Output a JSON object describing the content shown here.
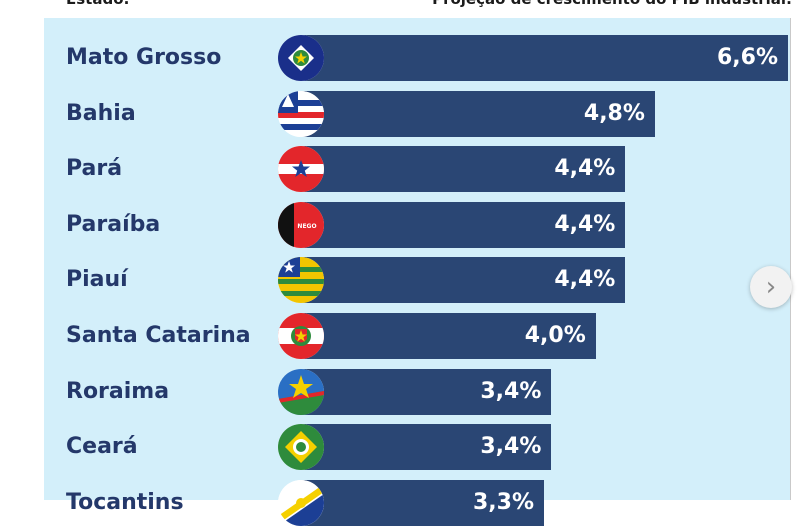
{
  "header": {
    "left": "Estado:",
    "right": "Projeção de crescimento do PIB industrial:"
  },
  "colors": {
    "panel": "#d3effa",
    "bar": "#2a4674",
    "label": "#24386a",
    "value_text": "#ffffff"
  },
  "next_button": {
    "icon": "chevron-right-icon",
    "glyph": "›"
  },
  "chart_data": {
    "type": "bar",
    "orientation": "horizontal",
    "title": "",
    "xlabel": "Projeção de crescimento do PIB industrial:",
    "ylabel": "Estado:",
    "xlim": [
      0,
      6.6
    ],
    "categories": [
      "Mato Grosso",
      "Bahia",
      "Pará",
      "Paraíba",
      "Piauí",
      "Santa Catarina",
      "Roraima",
      "Ceará",
      "Tocantins"
    ],
    "values": [
      6.6,
      4.8,
      4.4,
      4.4,
      4.4,
      4.0,
      3.4,
      3.4,
      3.3
    ],
    "value_labels": [
      "6,6%",
      "4,8%",
      "4,4%",
      "4,4%",
      "4,4%",
      "4,0%",
      "3,4%",
      "3,4%",
      "3,3%"
    ],
    "flag_icons": [
      "mato-grosso-flag-icon",
      "bahia-flag-icon",
      "para-flag-icon",
      "paraiba-flag-icon",
      "piaui-flag-icon",
      "santa-catarina-flag-icon",
      "roraima-flag-icon",
      "ceara-flag-icon",
      "tocantins-flag-icon"
    ],
    "flag_texts": [
      "",
      "",
      "",
      "NEGO",
      "",
      "",
      "",
      "",
      ""
    ],
    "grid": false,
    "legend": "none"
  }
}
